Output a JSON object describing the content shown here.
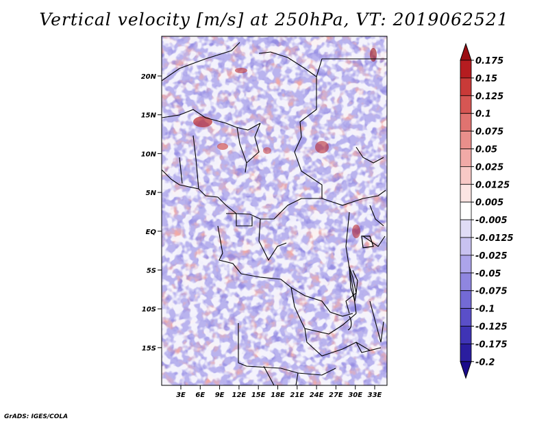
{
  "title": "Vertical velocity [m/s] at 250hPa, VT: 2019062521",
  "credit": "GrADS: IGES/COLA",
  "map": {
    "lat_ticks": [
      "20N",
      "15N",
      "10N",
      "5N",
      "EQ",
      "5S",
      "10S",
      "15S"
    ],
    "lon_ticks": [
      "3E",
      "6E",
      "9E",
      "12E",
      "15E",
      "18E",
      "21E",
      "24E",
      "27E",
      "30E",
      "33E"
    ]
  },
  "colorbar": {
    "levels": [
      "0.175",
      "0.15",
      "0.125",
      "0.1",
      "0.075",
      "0.05",
      "0.025",
      "0.0125",
      "0.005",
      "-0.005",
      "-0.0125",
      "-0.025",
      "-0.05",
      "-0.075",
      "-0.1",
      "-0.125",
      "-0.175",
      "-0.2"
    ],
    "colors": [
      "#9b0d12",
      "#b51c20",
      "#c93a38",
      "#d65653",
      "#e07370",
      "#e98f8b",
      "#f1aaa7",
      "#f8c9c6",
      "#fce5e3",
      "#ffffff",
      "#e0dcf6",
      "#c8c2f0",
      "#aca4ea",
      "#8f86e0",
      "#736ad5",
      "#5a4fc8",
      "#3f34b5",
      "#2a1d9f",
      "#1a0b8a"
    ]
  }
}
